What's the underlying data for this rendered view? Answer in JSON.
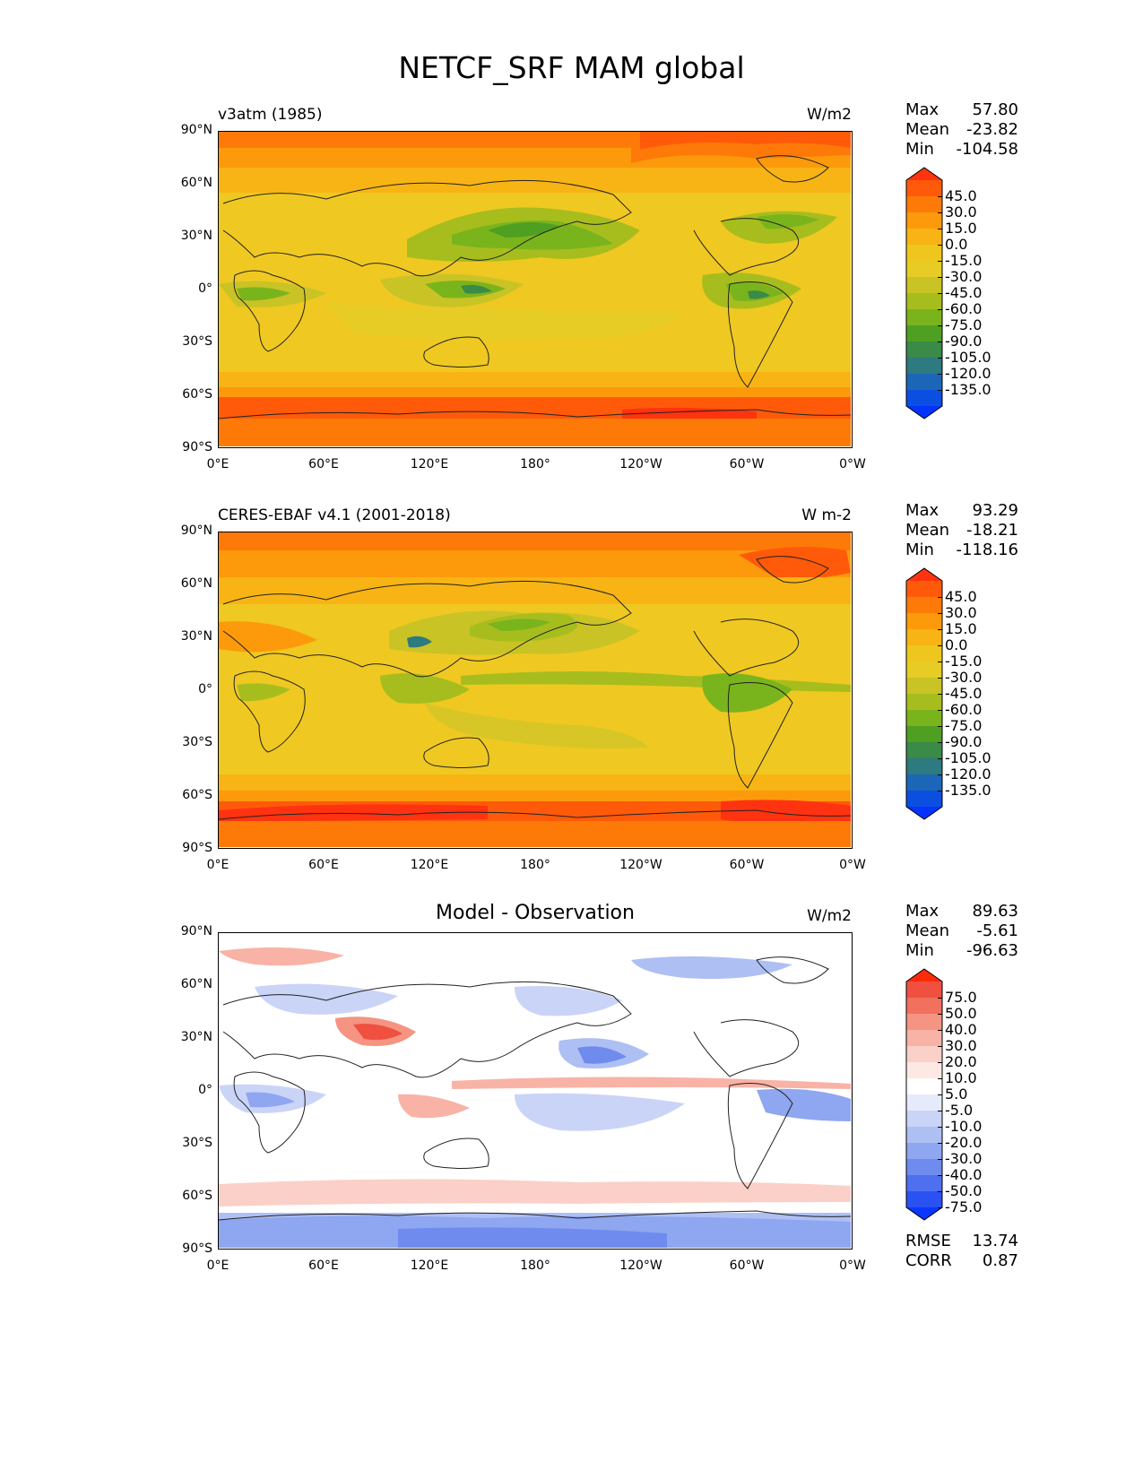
{
  "suptitle": "NETCF_SRF MAM global",
  "lat_ticks": [
    "90°N",
    "60°N",
    "30°N",
    "0°",
    "30°S",
    "60°S",
    "90°S"
  ],
  "lon_ticks": [
    "0°E",
    "60°E",
    "120°E",
    "180°",
    "120°W",
    "60°W",
    "0°W"
  ],
  "panels": [
    {
      "title": "v3atm (1985)",
      "units": "W/m2",
      "stats": {
        "max_label": "Max",
        "max": "57.80",
        "mean_label": "Mean",
        "mean": "-23.82",
        "min_label": "Min",
        "min": "-104.58"
      }
    },
    {
      "title": "CERES-EBAF v4.1 (2001-2018)",
      "units": "W m-2",
      "stats": {
        "max_label": "Max",
        "max": "93.29",
        "mean_label": "Mean",
        "mean": "-18.21",
        "min_label": "Min",
        "min": "-118.16"
      }
    },
    {
      "title": "Model - Observation",
      "units": "W/m2",
      "stats": {
        "max_label": "Max",
        "max": "89.63",
        "mean_label": "Mean",
        "mean": "-5.61",
        "min_label": "Min",
        "min": "-96.63"
      },
      "rmse_label": "RMSE",
      "rmse": "13.74",
      "corr_label": "CORR",
      "corr": "0.87"
    }
  ],
  "colorbars": {
    "field": {
      "labels": [
        "45.0",
        "30.0",
        "15.0",
        "0.0",
        "-15.0",
        "-30.0",
        "-45.0",
        "-60.0",
        "-75.0",
        "-90.0",
        "-105.0",
        "-120.0",
        "-135.0"
      ],
      "colors": [
        "#ff3310",
        "#ff5a0a",
        "#fe7a08",
        "#fc9a0c",
        "#f7b414",
        "#efc61e",
        "#e7cc26",
        "#c9c326",
        "#a7bd1e",
        "#7ab41c",
        "#4f9f22",
        "#3a8a48",
        "#2d7a80",
        "#1c66b8",
        "#0a4fe0",
        "#0433ff"
      ]
    },
    "diff": {
      "labels": [
        "75.0",
        "50.0",
        "40.0",
        "30.0",
        "20.0",
        "10.0",
        "5.0",
        "-5.0",
        "-10.0",
        "-20.0",
        "-30.0",
        "-40.0",
        "-50.0",
        "-75.0"
      ],
      "colors": [
        "#ff2a0a",
        "#f05040",
        "#f2705e",
        "#f59482",
        "#f8b3a6",
        "#fbd0c8",
        "#fde8e4",
        "#ffffff",
        "#e6ebfb",
        "#c9d4f7",
        "#aebff4",
        "#8fa6f0",
        "#6f8bee",
        "#4f70ee",
        "#2a52f3",
        "#0a36ff"
      ]
    }
  }
}
